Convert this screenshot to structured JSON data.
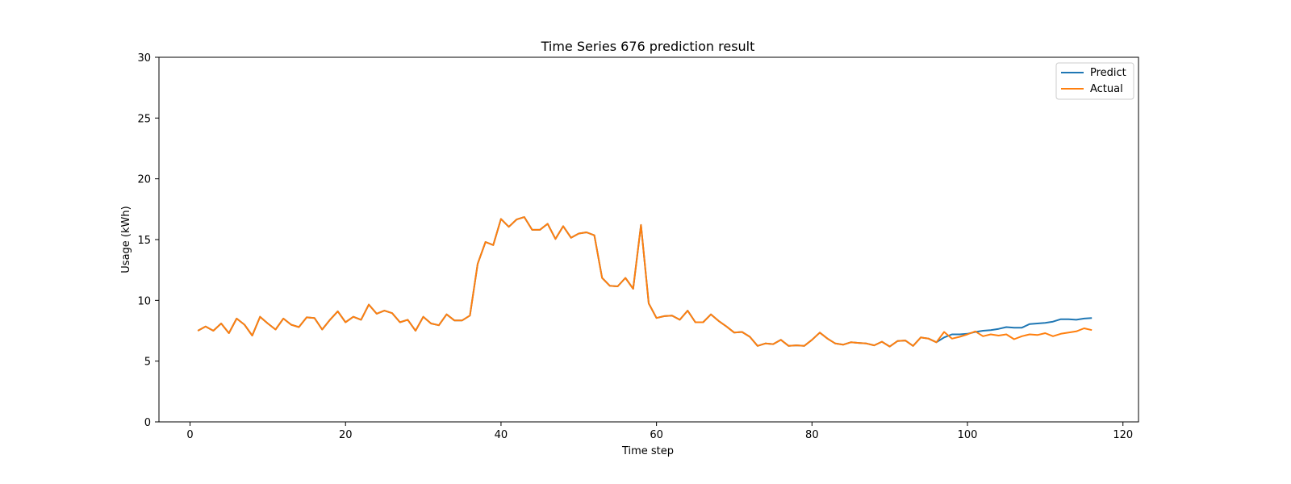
{
  "chart_data": {
    "type": "line",
    "title": "Time Series 676 prediction result",
    "xlabel": "Time step",
    "ylabel": "Usage (kWh)",
    "xlim": [
      -4,
      122
    ],
    "ylim": [
      0,
      30
    ],
    "xticks": [
      0,
      20,
      40,
      60,
      80,
      100,
      120
    ],
    "yticks": [
      0,
      5,
      10,
      15,
      20,
      25,
      30
    ],
    "grid": false,
    "legend_position": "top-right",
    "x": [
      1,
      2,
      3,
      4,
      5,
      6,
      7,
      8,
      9,
      10,
      11,
      12,
      13,
      14,
      15,
      16,
      17,
      18,
      19,
      20,
      21,
      22,
      23,
      24,
      25,
      26,
      27,
      28,
      29,
      30,
      31,
      32,
      33,
      34,
      35,
      36,
      37,
      38,
      39,
      40,
      41,
      42,
      43,
      44,
      45,
      46,
      47,
      48,
      49,
      50,
      51,
      52,
      53,
      54,
      55,
      56,
      57,
      58,
      59,
      60,
      61,
      62,
      63,
      64,
      65,
      66,
      67,
      68,
      69,
      70,
      71,
      72,
      73,
      74,
      75,
      76,
      77,
      78,
      79,
      80,
      81,
      82,
      83,
      84,
      85,
      86,
      87,
      88,
      89,
      90,
      91,
      92,
      93,
      94,
      95,
      96,
      97,
      98,
      99,
      100,
      101,
      102,
      103,
      104,
      105,
      106,
      107,
      108,
      109,
      110,
      111,
      112,
      113,
      114,
      115,
      116
    ],
    "series": [
      {
        "name": "Predict",
        "color": "#1f77b4",
        "values": [
          7.5,
          7.85,
          7.5,
          8.1,
          7.3,
          8.5,
          8.0,
          7.1,
          8.65,
          8.1,
          7.6,
          8.5,
          8.0,
          7.8,
          8.6,
          8.55,
          7.6,
          8.4,
          9.1,
          8.2,
          8.65,
          8.4,
          9.65,
          8.9,
          9.15,
          8.95,
          8.2,
          8.4,
          7.5,
          8.65,
          8.1,
          7.95,
          8.85,
          8.35,
          8.35,
          8.75,
          13.0,
          14.8,
          14.55,
          16.7,
          16.05,
          16.65,
          16.85,
          15.8,
          15.8,
          16.3,
          15.05,
          16.1,
          15.15,
          15.5,
          15.6,
          15.35,
          11.85,
          11.2,
          11.15,
          11.85,
          10.95,
          16.2,
          9.75,
          8.55,
          8.7,
          8.75,
          8.4,
          9.15,
          8.2,
          8.2,
          8.85,
          8.3,
          7.85,
          7.35,
          7.4,
          7.0,
          6.25,
          6.45,
          6.4,
          6.75,
          6.25,
          6.3,
          6.25,
          6.75,
          7.35,
          6.85,
          6.45,
          6.35,
          6.55,
          6.5,
          6.45,
          6.3,
          6.6,
          6.2,
          6.65,
          6.7,
          6.25,
          6.95,
          6.85,
          6.55,
          6.95,
          7.2,
          7.2,
          7.25,
          7.4,
          7.5,
          7.55,
          7.65,
          7.8,
          7.75,
          7.75,
          8.05,
          8.1,
          8.15,
          8.25,
          8.45,
          8.45,
          8.4,
          8.5,
          8.55
        ]
      },
      {
        "name": "Actual",
        "color": "#ff7f0e",
        "values": [
          7.5,
          7.85,
          7.5,
          8.1,
          7.3,
          8.5,
          8.0,
          7.1,
          8.65,
          8.1,
          7.6,
          8.5,
          8.0,
          7.8,
          8.6,
          8.55,
          7.6,
          8.4,
          9.1,
          8.2,
          8.65,
          8.4,
          9.65,
          8.9,
          9.15,
          8.95,
          8.2,
          8.4,
          7.5,
          8.65,
          8.1,
          7.95,
          8.85,
          8.35,
          8.35,
          8.75,
          13.0,
          14.8,
          14.55,
          16.7,
          16.05,
          16.65,
          16.85,
          15.8,
          15.8,
          16.3,
          15.05,
          16.1,
          15.15,
          15.5,
          15.6,
          15.35,
          11.85,
          11.2,
          11.15,
          11.85,
          10.95,
          16.2,
          9.75,
          8.55,
          8.7,
          8.75,
          8.4,
          9.15,
          8.2,
          8.2,
          8.85,
          8.3,
          7.85,
          7.35,
          7.4,
          7.0,
          6.25,
          6.45,
          6.4,
          6.75,
          6.25,
          6.3,
          6.25,
          6.75,
          7.35,
          6.85,
          6.45,
          6.35,
          6.55,
          6.5,
          6.45,
          6.3,
          6.6,
          6.2,
          6.65,
          6.7,
          6.25,
          6.95,
          6.85,
          6.55,
          7.4,
          6.85,
          7.0,
          7.2,
          7.45,
          7.05,
          7.2,
          7.1,
          7.2,
          6.8,
          7.05,
          7.2,
          7.15,
          7.3,
          7.05,
          7.25,
          7.35,
          7.45,
          7.7,
          7.55
        ]
      }
    ]
  }
}
